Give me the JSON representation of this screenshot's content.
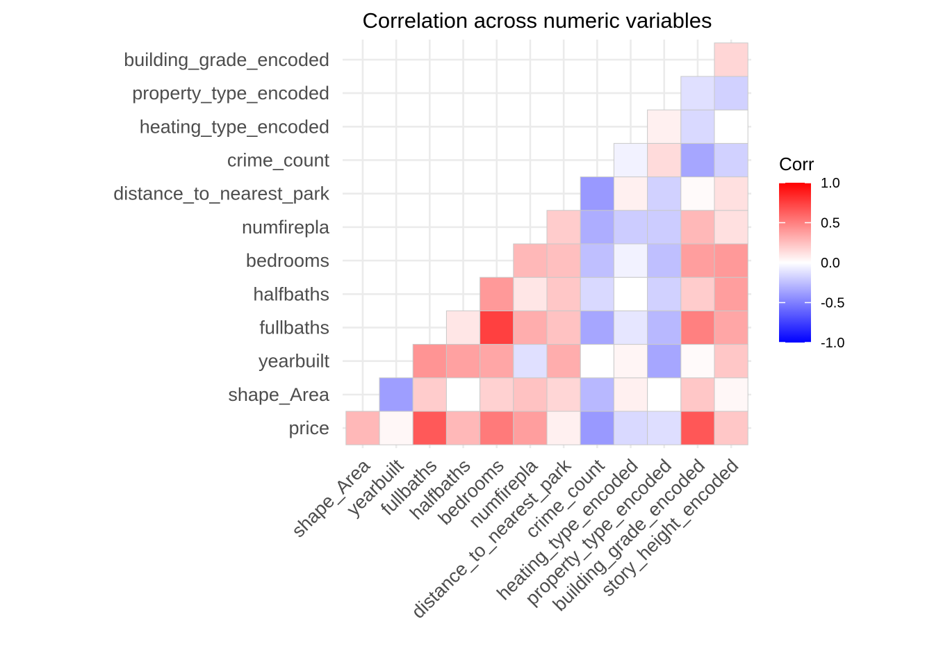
{
  "chart_data": {
    "type": "heatmap",
    "title": "Correlation across numeric variables",
    "x_categories": [
      "shape_Area",
      "yearbuilt",
      "fullbaths",
      "halfbaths",
      "bedrooms",
      "numfirepla",
      "distance_to_nearest_park",
      "crime_count",
      "heating_type_encoded",
      "property_type_encoded",
      "building_grade_encoded",
      "story_height_encoded"
    ],
    "y_categories": [
      "price",
      "shape_Area",
      "yearbuilt",
      "fullbaths",
      "halfbaths",
      "bedrooms",
      "numfirepla",
      "distance_to_nearest_park",
      "crime_count",
      "heating_type_encoded",
      "property_type_encoded",
      "building_grade_encoded"
    ],
    "rows": [
      {
        "y": "price",
        "values": [
          0.28,
          0.03,
          0.65,
          0.28,
          0.52,
          0.38,
          0.06,
          -0.4,
          -0.15,
          -0.13,
          0.66,
          0.22
        ]
      },
      {
        "y": "shape_Area",
        "values": [
          null,
          -0.38,
          0.2,
          0.0,
          0.18,
          0.24,
          0.16,
          -0.28,
          0.06,
          0.0,
          0.22,
          0.03
        ]
      },
      {
        "y": "yearbuilt",
        "values": [
          null,
          null,
          0.42,
          0.37,
          0.35,
          -0.12,
          0.32,
          0.0,
          0.04,
          -0.35,
          0.02,
          0.22
        ]
      },
      {
        "y": "fullbaths",
        "values": [
          null,
          null,
          null,
          0.1,
          0.75,
          0.32,
          0.24,
          -0.35,
          -0.1,
          -0.28,
          0.5,
          0.35
        ]
      },
      {
        "y": "halfbaths",
        "values": [
          null,
          null,
          null,
          null,
          0.4,
          0.1,
          0.22,
          -0.15,
          0.0,
          -0.18,
          0.2,
          0.38
        ]
      },
      {
        "y": "bedrooms",
        "values": [
          null,
          null,
          null,
          null,
          null,
          0.28,
          0.25,
          -0.25,
          -0.05,
          -0.25,
          0.38,
          0.4
        ]
      },
      {
        "y": "numfirepla",
        "values": [
          null,
          null,
          null,
          null,
          null,
          null,
          0.2,
          -0.32,
          -0.2,
          -0.2,
          0.28,
          0.12
        ]
      },
      {
        "y": "distance_to_nearest_park",
        "values": [
          null,
          null,
          null,
          null,
          null,
          null,
          null,
          -0.4,
          0.06,
          -0.18,
          0.02,
          0.12
        ]
      },
      {
        "y": "crime_count",
        "values": [
          null,
          null,
          null,
          null,
          null,
          null,
          null,
          null,
          -0.05,
          0.14,
          -0.35,
          -0.18
        ]
      },
      {
        "y": "heating_type_encoded",
        "values": [
          null,
          null,
          null,
          null,
          null,
          null,
          null,
          null,
          null,
          0.06,
          -0.15,
          0.0
        ]
      },
      {
        "y": "property_type_encoded",
        "values": [
          null,
          null,
          null,
          null,
          null,
          null,
          null,
          null,
          null,
          null,
          -0.12,
          -0.18
        ]
      },
      {
        "y": "building_grade_encoded",
        "values": [
          null,
          null,
          null,
          null,
          null,
          null,
          null,
          null,
          null,
          null,
          null,
          0.16
        ]
      }
    ],
    "scale": {
      "low": "#0000ff",
      "mid": "#ffffff",
      "high": "#ff0000",
      "min": -1.0,
      "max": 1.0
    },
    "legend": {
      "title": "Corr",
      "position": "right",
      "breaks": [
        1.0,
        0.5,
        0.0,
        -0.5,
        -1.0
      ],
      "labels": [
        "1.0",
        "0.5",
        "0.0",
        "-0.5",
        "-1.0"
      ]
    },
    "grid": true,
    "tile_border": "#c9c9c9"
  }
}
